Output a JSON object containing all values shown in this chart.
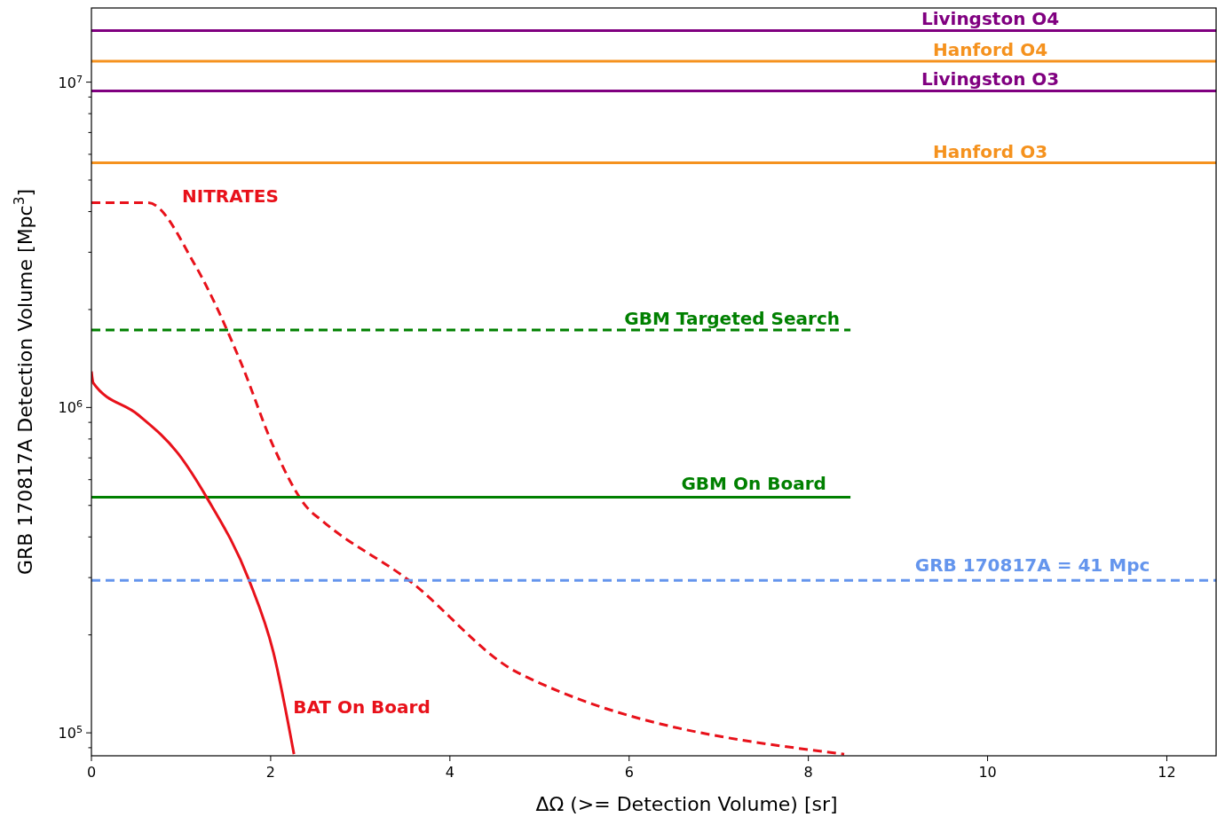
{
  "chart_data": {
    "type": "line",
    "xlabel": "ΔΩ (>= Detection Volume) [sr]",
    "ylabel": "GRB 170817A Detection Volume [Mpc$^{3}$]",
    "log": "y",
    "grid": false,
    "marker": "none",
    "xlim": [
      0,
      12.55
    ],
    "xticks": [
      0,
      2,
      4,
      6,
      8,
      10,
      12
    ],
    "ylim": [
      85000,
      16900000
    ],
    "yticks": [
      {
        "value": 90000,
        "label": null
      },
      {
        "value": 100000,
        "label": "10$^{5}$"
      },
      {
        "value": 200000,
        "label": null
      },
      {
        "value": 300000,
        "label": null
      },
      {
        "value": 400000,
        "label": null
      },
      {
        "value": 500000,
        "label": null
      },
      {
        "value": 600000,
        "label": null
      },
      {
        "value": 700000,
        "label": null
      },
      {
        "value": 800000,
        "label": null
      },
      {
        "value": 900000,
        "label": null
      },
      {
        "value": 1000000,
        "label": "10$^{6}$"
      },
      {
        "value": 2000000,
        "label": null
      },
      {
        "value": 3000000,
        "label": null
      },
      {
        "value": 4000000,
        "label": null
      },
      {
        "value": 5000000,
        "label": null
      },
      {
        "value": 6000000,
        "label": null
      },
      {
        "value": 7000000,
        "label": null
      },
      {
        "value": 8000000,
        "label": null
      },
      {
        "value": 9000000,
        "label": null
      },
      {
        "value": 10000000,
        "label": "10$^{7}$"
      }
    ],
    "series": [
      {
        "name": "Livingston O4",
        "color": "#800080",
        "line_style": "solid",
        "x": [
          0,
          12.55
        ],
        "values": [
          14400000,
          14400000
        ]
      },
      {
        "name": "Hanford O4",
        "color": "#f5921e",
        "line_style": "solid",
        "x": [
          0,
          12.55
        ],
        "values": [
          11600000,
          11600000
        ]
      },
      {
        "name": "Livingston O3",
        "color": "#800080",
        "line_style": "solid",
        "x": [
          0,
          12.55
        ],
        "values": [
          9400000,
          9400000
        ]
      },
      {
        "name": "Hanford O3",
        "color": "#f5921e",
        "line_style": "solid",
        "x": [
          0,
          12.55
        ],
        "values": [
          5650000,
          5650000
        ]
      },
      {
        "name": "NITRATES",
        "color": "#e8111a",
        "line_style": "dashed",
        "x": [
          0,
          0.63,
          1.15,
          1.67,
          2.03,
          2.4,
          2.59,
          3.53,
          4.76,
          8.4
        ],
        "values": [
          4260000,
          4260000,
          2760000,
          1370000,
          760000,
          495000,
          445000,
          296000,
          153000,
          86000
        ]
      },
      {
        "name": "GBM Targeted Search",
        "color": "#008000",
        "line_style": "dashed",
        "x": [
          0,
          8.47
        ],
        "values": [
          1730000,
          1730000
        ]
      },
      {
        "name": "GBM On Board",
        "color": "#008000",
        "line_style": "solid",
        "x": [
          0,
          8.47
        ],
        "values": [
          530000,
          530000
        ]
      },
      {
        "name": "BAT On Board",
        "color": "#e8111a",
        "line_style": "solid",
        "x": [
          0,
          0.02,
          0.52,
          0.97,
          1.29,
          1.76,
          2.03,
          2.26
        ],
        "values": [
          1290000,
          1190000,
          950000,
          720000,
          527000,
          294000,
          177000,
          86000
        ]
      },
      {
        "name": "GRB 170817A = 41 Mpc",
        "color": "#6495ed",
        "line_style": "dashed",
        "x": [
          0,
          12.55
        ],
        "values": [
          294000,
          294000
        ]
      }
    ]
  }
}
